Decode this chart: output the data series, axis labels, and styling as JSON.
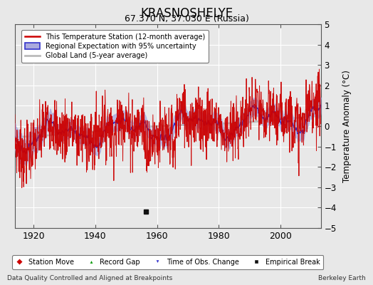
{
  "title": "KRASNOSHELYE",
  "subtitle": "67.370 N, 37.030 E (Russia)",
  "ylabel": "Temperature Anomaly (°C)",
  "xlim": [
    1914,
    2013
  ],
  "ylim": [
    -5,
    5
  ],
  "yticks": [
    -5,
    -4,
    -3,
    -2,
    -1,
    0,
    1,
    2,
    3,
    4,
    5
  ],
  "xticks": [
    1920,
    1940,
    1960,
    1980,
    2000
  ],
  "background_color": "#e8e8e8",
  "plot_bg_color": "#e8e8e8",
  "grid_color": "#ffffff",
  "station_color": "#cc0000",
  "regional_color": "#3333cc",
  "regional_fill_color": "#aaaadd",
  "global_color": "#bbbbbb",
  "empirical_break_year": 1956.5,
  "empirical_break_value": -4.2,
  "footer_left": "Data Quality Controlled and Aligned at Breakpoints",
  "footer_right": "Berkeley Earth",
  "legend_entries": [
    "This Temperature Station (12-month average)",
    "Regional Expectation with 95% uncertainty",
    "Global Land (5-year average)"
  ],
  "marker_labels": [
    "Station Move",
    "Record Gap",
    "Time of Obs. Change",
    "Empirical Break"
  ],
  "marker_colors": [
    "#cc0000",
    "#009900",
    "#3333cc",
    "#111111"
  ],
  "marker_shapes": [
    "D",
    "^",
    "v",
    "s"
  ]
}
